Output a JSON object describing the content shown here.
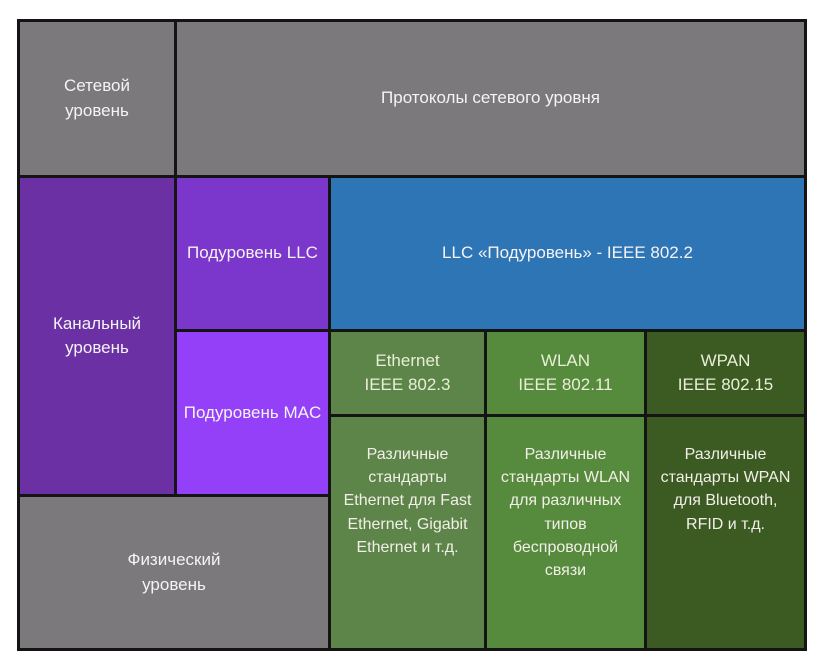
{
  "colors": {
    "border": "#141414",
    "gray": "#7c797c",
    "purple-dark": "#6b31a4",
    "purple-mid": "#7b36cb",
    "purple-bright": "#9340f8",
    "blue": "#2e75b6",
    "green-eth": "#5d8549",
    "green-wlan": "#568a3c",
    "green-wpan": "#3c5b23",
    "green-hdr-text": "#e9eed7"
  },
  "cells": {
    "network_layer": {
      "label": "Сетевой\nуровень"
    },
    "network_protocols": {
      "label": "Протоколы сетевого уровня"
    },
    "datalink_layer": {
      "label": "Канальный\nуровень"
    },
    "llc_sublayer": {
      "label": "Подуровень LLC"
    },
    "llc_standard": {
      "label": "LLC «Подуровень» - IEEE 802.2"
    },
    "mac_sublayer": {
      "label": "Подуровень MAC"
    },
    "ethernet_header": {
      "label": "Ethernet\nIEEE 802.3"
    },
    "wlan_header": {
      "label": "WLAN\nIEEE 802.11"
    },
    "wpan_header": {
      "label": "WPAN\nIEEE 802.15"
    },
    "physical_layer": {
      "label": "Физический\nуровень"
    },
    "ethernet_desc": {
      "label": "Различные стандарты Ethernet для Fast Ethernet, Gigabit Ethernet и т.д."
    },
    "wlan_desc": {
      "label": "Различные стандарты WLAN для различных типов беспроводной связи"
    },
    "wpan_desc": {
      "label": "Различные стандарты WPAN для Bluetooth, RFID и т.д."
    }
  }
}
